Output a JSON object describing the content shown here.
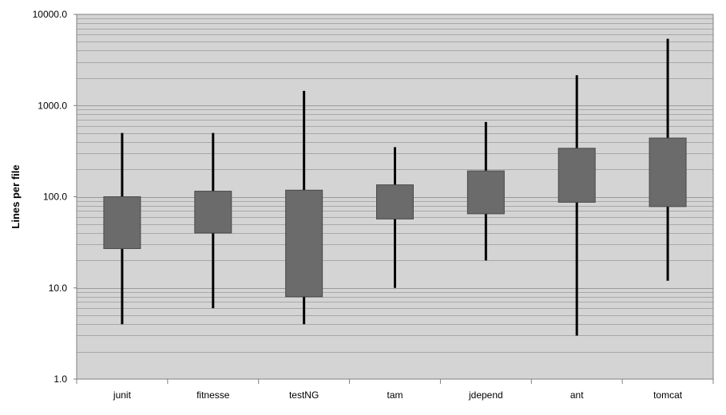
{
  "chart_data": {
    "type": "boxplot",
    "title": "",
    "xlabel": "",
    "ylabel": "Lines per file",
    "yscale": "log",
    "ylim": [
      1,
      10000
    ],
    "y_ticks": [
      "1.0",
      "10.0",
      "100.0",
      "1000.0",
      "10000.0"
    ],
    "grid": "horizontal",
    "colors": {
      "plot_bg": "#d4d4d4",
      "box": "#6b6b6b",
      "whisker": "#000000",
      "grid": "#9a9a9a"
    },
    "categories": [
      "junit",
      "fitnesse",
      "testNG",
      "tam",
      "jdepend",
      "ant",
      "tomcat"
    ],
    "boxes": [
      {
        "name": "junit",
        "min": 4,
        "q1": 27,
        "q3": 100,
        "max": 500
      },
      {
        "name": "fitnesse",
        "min": 6,
        "q1": 40,
        "q3": 115,
        "max": 500
      },
      {
        "name": "testNG",
        "min": 4,
        "q1": 8,
        "q3": 118,
        "max": 1450
      },
      {
        "name": "tam",
        "min": 10,
        "q1": 57,
        "q3": 135,
        "max": 350
      },
      {
        "name": "jdepend",
        "min": 20,
        "q1": 65,
        "q3": 192,
        "max": 660
      },
      {
        "name": "ant",
        "min": 3,
        "q1": 87,
        "q3": 340,
        "max": 2150
      },
      {
        "name": "tomcat",
        "min": 12,
        "q1": 78,
        "q3": 440,
        "max": 5400
      }
    ]
  }
}
